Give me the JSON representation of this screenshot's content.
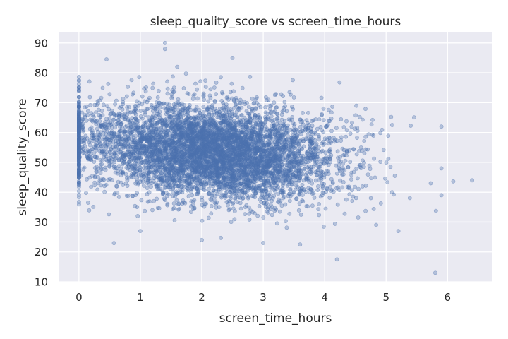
{
  "chart_data": {
    "type": "scatter",
    "title": "sleep_quality_score vs screen_time_hours",
    "xlabel": "screen_time_hours",
    "ylabel": "sleep_quality_score",
    "xlim": [
      -0.32,
      6.72
    ],
    "ylim": [
      10,
      93.5
    ],
    "xticks": [
      0,
      1,
      2,
      3,
      4,
      5,
      6
    ],
    "yticks": [
      10,
      20,
      30,
      40,
      50,
      60,
      70,
      80,
      90
    ],
    "grid": true,
    "background_color": "#eaeaf2",
    "grid_color": "#ffffff",
    "marker_color": "#4c72b0",
    "marker_alpha": 0.35,
    "series": [
      {
        "distribution": {
          "n_points": 6000,
          "zero_spike_fraction": 0.05,
          "x_mean": 2.2,
          "x_sd": 1.0,
          "y_mean_at_x0": 57,
          "y_slope_per_hour": -1.6,
          "y_sd": 8
        },
        "notable_points": [
          {
            "x": 1.4,
            "y": 90
          },
          {
            "x": 1.4,
            "y": 88
          },
          {
            "x": 0.45,
            "y": 84.5
          },
          {
            "x": 2.5,
            "y": 85
          },
          {
            "x": 1.6,
            "y": 82
          },
          {
            "x": 5.8,
            "y": 13
          },
          {
            "x": 4.2,
            "y": 17.5
          },
          {
            "x": 6.4,
            "y": 44
          },
          {
            "x": 5.9,
            "y": 62
          },
          {
            "x": 5.9,
            "y": 48
          },
          {
            "x": 5.9,
            "y": 39
          },
          {
            "x": 3.0,
            "y": 23
          },
          {
            "x": 3.6,
            "y": 22.5
          },
          {
            "x": 1.0,
            "y": 27
          },
          {
            "x": 2.0,
            "y": 24
          },
          {
            "x": 5.2,
            "y": 27
          },
          {
            "x": 0.15,
            "y": 36.5
          }
        ]
      }
    ]
  }
}
